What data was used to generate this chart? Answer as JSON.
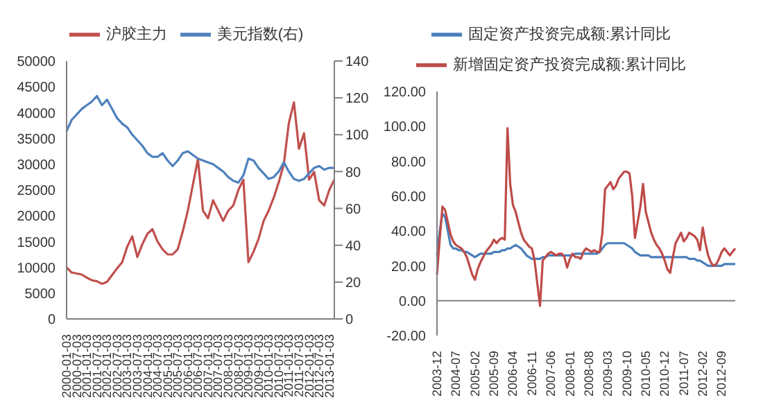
{
  "chart_data": [
    {
      "type": "line",
      "legend": "top",
      "categories": [
        "2000-01-03",
        null,
        "2000-07-03",
        null,
        "2001-01-03",
        null,
        "2001-07-03",
        null,
        "2002-01-03",
        null,
        "2002-07-03",
        null,
        "2003-01-03",
        null,
        "2003-07-03",
        null,
        "2004-01-03",
        null,
        "2004-07-03",
        null,
        "2005-01-03",
        null,
        "2005-07-03",
        null,
        "2006-01-03",
        null,
        "2006-07-03",
        null,
        "2007-01-03",
        null,
        "2007-07-03",
        null,
        "2008-01-03",
        null,
        "2008-07-03",
        null,
        "2009-01-03",
        null,
        "2009-07-03",
        null,
        "2010-01-03",
        null,
        "2010-07-03",
        null,
        "2011-01-03",
        null,
        "2011-07-03",
        null,
        "2012-01-03",
        null,
        "2012-07-03",
        null,
        "2013-01-03",
        null
      ],
      "series": [
        {
          "name": "沪胶主力",
          "color": "#c0504d",
          "values": [
            10000,
            9000,
            8800,
            8600,
            8000,
            7500,
            7300,
            6800,
            7200,
            8500,
            9800,
            11000,
            14000,
            16000,
            12000,
            14500,
            16500,
            17400,
            15000,
            13500,
            12500,
            12500,
            13500,
            17000,
            21000,
            26000,
            31000,
            21000,
            19500,
            23000,
            21000,
            19000,
            21000,
            22000,
            25000,
            27000,
            11000,
            13000,
            15500,
            19000,
            21000,
            23500,
            26500,
            30000,
            38000,
            42000,
            33000,
            36000,
            27000,
            28500,
            23000,
            22000,
            25000,
            27000
          ]
        },
        {
          "name": "美元指数(右)",
          "color": "#4f81bd",
          "axis": "y2",
          "values": [
            102,
            108,
            111,
            114,
            116,
            118,
            121,
            116,
            119,
            114,
            109,
            106,
            104,
            100,
            97,
            94,
            90,
            88,
            88,
            90,
            86,
            83,
            86,
            90,
            91,
            89,
            87,
            86,
            85,
            84,
            82,
            80,
            77,
            75,
            74,
            78,
            87,
            86,
            82,
            79,
            76,
            77,
            80,
            85,
            80,
            76,
            75,
            76,
            79,
            82,
            83,
            81,
            82,
            82
          ]
        }
      ],
      "ylim": [
        0,
        50000
      ],
      "yticks": [
        0,
        5000,
        10000,
        15000,
        20000,
        25000,
        30000,
        35000,
        40000,
        45000,
        50000
      ],
      "y2lim": [
        0,
        140
      ],
      "y2ticks": [
        0,
        20,
        40,
        60,
        80,
        100,
        120,
        140
      ]
    },
    {
      "type": "line",
      "legend": "top",
      "categories": [
        "2003-12",
        null,
        null,
        null,
        null,
        null,
        null,
        "2004-07",
        null,
        null,
        null,
        null,
        null,
        null,
        "2005-02",
        null,
        null,
        null,
        null,
        null,
        null,
        "2005-09",
        null,
        null,
        null,
        null,
        null,
        null,
        "2006-04",
        null,
        null,
        null,
        null,
        null,
        null,
        "2006-11",
        null,
        null,
        null,
        null,
        null,
        null,
        "2007-06",
        null,
        null,
        null,
        null,
        null,
        null,
        "2008-01",
        null,
        null,
        null,
        null,
        null,
        null,
        "2008-08",
        null,
        null,
        null,
        null,
        null,
        null,
        "2009-03",
        null,
        null,
        null,
        null,
        null,
        null,
        "2009-10",
        null,
        null,
        null,
        null,
        null,
        null,
        "2010-05",
        null,
        null,
        null,
        null,
        null,
        null,
        "2010-12",
        null,
        null,
        null,
        null,
        null,
        null,
        "2011-07",
        null,
        null,
        null,
        null,
        null,
        null,
        "2012-02",
        null,
        null,
        null,
        null,
        null,
        null,
        "2012-09",
        null,
        null,
        null,
        null,
        null
      ],
      "series": [
        {
          "name": "固定资产投资完成额:累计同比",
          "color": "#4a7ebb",
          "values": [
            26,
            40,
            50,
            48,
            40,
            32,
            30,
            30,
            29,
            29,
            28,
            28,
            27,
            26,
            25,
            26,
            27,
            27,
            27,
            27,
            27,
            28,
            28,
            28,
            29,
            29,
            30,
            30,
            31,
            32,
            31,
            30,
            28,
            26,
            25,
            24,
            24,
            24,
            24,
            25,
            25,
            26,
            26,
            26,
            26,
            26,
            26,
            26,
            26,
            26,
            26,
            27,
            27,
            27,
            27,
            27,
            27,
            27,
            27,
            27,
            28,
            30,
            32,
            33,
            33,
            33,
            33,
            33,
            33,
            33,
            32,
            31,
            30,
            28,
            27,
            26,
            26,
            26,
            26,
            25,
            25,
            25,
            25,
            25,
            25,
            25,
            25,
            25,
            25,
            25,
            25,
            25,
            25,
            24,
            24,
            24,
            23,
            23,
            22,
            21,
            20,
            20,
            20,
            20,
            20,
            20,
            21,
            21,
            21,
            21,
            21
          ]
        },
        {
          "name": "新增固定资产投资完成额:累计同比",
          "color": "#be4b48",
          "values": [
            15,
            35,
            54,
            52,
            45,
            38,
            34,
            32,
            31,
            30,
            28,
            25,
            20,
            15,
            12,
            18,
            22,
            25,
            28,
            30,
            32,
            35,
            33,
            35,
            36,
            35,
            99,
            67,
            55,
            51,
            45,
            39,
            35,
            33,
            31,
            30,
            23,
            10,
            -3,
            23,
            25,
            27,
            28,
            27,
            26,
            27,
            27,
            25,
            19,
            24,
            27,
            25,
            25,
            24,
            28,
            30,
            29,
            28,
            29,
            28,
            28,
            39,
            64,
            66,
            68,
            64,
            66,
            70,
            72,
            74,
            74,
            73,
            60,
            36,
            45,
            54,
            67,
            51,
            45,
            39,
            35,
            32,
            30,
            27,
            23,
            18,
            16,
            25,
            33,
            36,
            39,
            34,
            36,
            39,
            38,
            37,
            35,
            29,
            42,
            33,
            26,
            22,
            20,
            21,
            24,
            28,
            30,
            28,
            26,
            28,
            30
          ]
        }
      ],
      "ylim": [
        -20,
        120
      ],
      "yticks": [
        {
          "value": -20,
          "label": "-20.00"
        },
        {
          "value": 0,
          "label": "0.00"
        },
        {
          "value": 20,
          "label": "20.00"
        },
        {
          "value": 40,
          "label": "40.00"
        },
        {
          "value": 60,
          "label": "60.00"
        },
        {
          "value": 80,
          "label": "80.00"
        },
        {
          "value": 100,
          "label": "100.00"
        },
        {
          "value": 120,
          "label": "120.00"
        }
      ],
      "ref_lines": [
        {
          "axis": "y",
          "value": 0,
          "color": "#808080"
        }
      ]
    }
  ]
}
